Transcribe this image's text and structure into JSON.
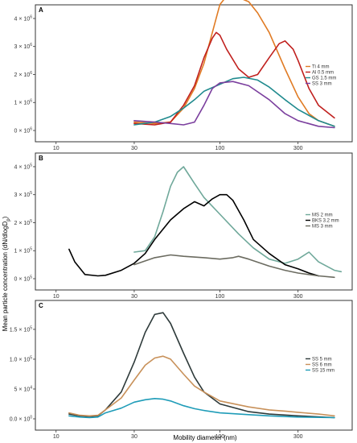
{
  "figure": {
    "xlabel": "Mobility diameter (nm)",
    "ylabel": "Mean particle concentration (dN/dlogD",
    "ylabel_sub": "p",
    "ylabel_end": ")"
  },
  "chart_data": [
    {
      "type": "line",
      "title": "A",
      "xscale": "log",
      "xlim": [
        8,
        600
      ],
      "ylim": [
        0,
        4.2
      ],
      "yexp": "6",
      "xticks": [
        10,
        30,
        100,
        300
      ],
      "xtick_labels": [
        "10",
        "30",
        "100",
        "300"
      ],
      "yticks": [
        0,
        1,
        2,
        3,
        4
      ],
      "ytick_labels": [
        "0 × 10",
        "1 × 10",
        "2 × 10",
        "3 × 10",
        "4 × 10"
      ],
      "legend_position": "right",
      "series": [
        {
          "name": "Ti 4 mm",
          "color": "#E07B24",
          "points": [
            [
              30,
              0.3
            ],
            [
              40,
              0.25
            ],
            [
              50,
              0.3
            ],
            [
              60,
              0.8
            ],
            [
              70,
              1.5
            ],
            [
              80,
              2.4
            ],
            [
              90,
              3.5
            ],
            [
              100,
              4.5
            ],
            [
              110,
              4.8
            ],
            [
              130,
              4.75
            ],
            [
              150,
              4.6
            ],
            [
              170,
              4.2
            ],
            [
              200,
              3.5
            ],
            [
              250,
              2.2
            ],
            [
              300,
              1.2
            ],
            [
              350,
              0.6
            ],
            [
              400,
              0.35
            ],
            [
              500,
              0.15
            ]
          ]
        },
        {
          "name": "Al 0.5 mm",
          "color": "#C0201E",
          "points": [
            [
              30,
              0.25
            ],
            [
              40,
              0.2
            ],
            [
              50,
              0.3
            ],
            [
              60,
              0.9
            ],
            [
              70,
              1.6
            ],
            [
              80,
              2.6
            ],
            [
              90,
              3.3
            ],
            [
              95,
              3.5
            ],
            [
              100,
              3.4
            ],
            [
              110,
              2.9
            ],
            [
              130,
              2.2
            ],
            [
              150,
              1.9
            ],
            [
              170,
              2.0
            ],
            [
              200,
              2.6
            ],
            [
              230,
              3.1
            ],
            [
              250,
              3.2
            ],
            [
              280,
              2.9
            ],
            [
              300,
              2.5
            ],
            [
              350,
              1.5
            ],
            [
              400,
              0.9
            ],
            [
              500,
              0.45
            ]
          ]
        },
        {
          "name": "GS 1.5 mm",
          "color": "#1F8A8E",
          "points": [
            [
              30,
              0.2
            ],
            [
              40,
              0.3
            ],
            [
              50,
              0.5
            ],
            [
              60,
              0.8
            ],
            [
              70,
              1.1
            ],
            [
              80,
              1.4
            ],
            [
              100,
              1.65
            ],
            [
              120,
              1.85
            ],
            [
              140,
              1.9
            ],
            [
              170,
              1.8
            ],
            [
              200,
              1.55
            ],
            [
              250,
              1.1
            ],
            [
              300,
              0.75
            ],
            [
              400,
              0.35
            ],
            [
              500,
              0.15
            ]
          ]
        },
        {
          "name": "SS 3 mm",
          "color": "#7B3F9E",
          "points": [
            [
              30,
              0.35
            ],
            [
              40,
              0.3
            ],
            [
              50,
              0.25
            ],
            [
              60,
              0.2
            ],
            [
              70,
              0.3
            ],
            [
              80,
              0.9
            ],
            [
              90,
              1.5
            ],
            [
              100,
              1.7
            ],
            [
              120,
              1.75
            ],
            [
              150,
              1.6
            ],
            [
              200,
              1.1
            ],
            [
              250,
              0.6
            ],
            [
              300,
              0.35
            ],
            [
              400,
              0.15
            ],
            [
              500,
              0.1
            ]
          ]
        }
      ]
    },
    {
      "type": "line",
      "title": "B",
      "xscale": "log",
      "xlim": [
        8,
        600
      ],
      "ylim": [
        0,
        4.2
      ],
      "yexp": "5",
      "xticks": [
        10,
        30,
        100,
        300
      ],
      "xtick_labels": [
        "10",
        "30",
        "100",
        "300"
      ],
      "yticks": [
        0,
        1,
        2,
        3,
        4
      ],
      "ytick_labels": [
        "0 × 10",
        "1 × 10",
        "2 × 10",
        "3 × 10",
        "4 × 10"
      ],
      "legend_position": "right",
      "series": [
        {
          "name": "MS 2 mm",
          "color": "#6FA89A",
          "points": [
            [
              30,
              0.95
            ],
            [
              35,
              1.0
            ],
            [
              40,
              1.5
            ],
            [
              45,
              2.4
            ],
            [
              50,
              3.3
            ],
            [
              55,
              3.8
            ],
            [
              60,
              4.0
            ],
            [
              70,
              3.4
            ],
            [
              80,
              2.9
            ],
            [
              100,
              2.3
            ],
            [
              130,
              1.6
            ],
            [
              160,
              1.1
            ],
            [
              200,
              0.7
            ],
            [
              250,
              0.55
            ],
            [
              300,
              0.7
            ],
            [
              350,
              0.95
            ],
            [
              400,
              0.6
            ],
            [
              500,
              0.3
            ],
            [
              550,
              0.25
            ]
          ]
        },
        {
          "name": "BKS 3.2 mm",
          "color": "#000000",
          "points": [
            [
              12,
              1.05
            ],
            [
              13,
              0.6
            ],
            [
              15,
              0.15
            ],
            [
              18,
              0.1
            ],
            [
              20,
              0.12
            ],
            [
              25,
              0.3
            ],
            [
              30,
              0.55
            ],
            [
              35,
              0.9
            ],
            [
              40,
              1.4
            ],
            [
              50,
              2.1
            ],
            [
              60,
              2.5
            ],
            [
              70,
              2.75
            ],
            [
              80,
              2.6
            ],
            [
              90,
              2.85
            ],
            [
              100,
              3.0
            ],
            [
              110,
              3.0
            ],
            [
              120,
              2.8
            ],
            [
              140,
              2.1
            ],
            [
              160,
              1.4
            ],
            [
              200,
              0.9
            ],
            [
              250,
              0.5
            ],
            [
              300,
              0.35
            ],
            [
              350,
              0.2
            ],
            [
              400,
              0.1
            ]
          ]
        },
        {
          "name": "MS 3 mm",
          "color": "#6B6B60",
          "points": [
            [
              30,
              0.5
            ],
            [
              40,
              0.75
            ],
            [
              50,
              0.85
            ],
            [
              60,
              0.8
            ],
            [
              80,
              0.75
            ],
            [
              100,
              0.7
            ],
            [
              120,
              0.75
            ],
            [
              130,
              0.8
            ],
            [
              150,
              0.7
            ],
            [
              200,
              0.45
            ],
            [
              250,
              0.3
            ],
            [
              300,
              0.2
            ],
            [
              400,
              0.1
            ],
            [
              500,
              0.05
            ]
          ]
        }
      ]
    },
    {
      "type": "line",
      "title": "C",
      "xscale": "log",
      "xlim": [
        8,
        600
      ],
      "ylim": [
        0,
        1.85
      ],
      "yexp": "5",
      "xticks": [
        10,
        30,
        100,
        300
      ],
      "xtick_labels": [
        "10",
        "30",
        "100",
        "300"
      ],
      "yticks": [
        0,
        0.5,
        1.0,
        1.5
      ],
      "ytick_labels": [
        "0.0 × 10",
        "5 × 10",
        "1.0 × 10",
        "1.5 × 10"
      ],
      "ytick_exps": [
        "0",
        "4",
        "5",
        "5"
      ],
      "legend_position": "right",
      "series": [
        {
          "name": "SS 5 mm",
          "color": "#2E3A3A",
          "points": [
            [
              12,
              0.08
            ],
            [
              14,
              0.05
            ],
            [
              16,
              0.04
            ],
            [
              18,
              0.05
            ],
            [
              20,
              0.15
            ],
            [
              25,
              0.45
            ],
            [
              30,
              0.95
            ],
            [
              35,
              1.45
            ],
            [
              40,
              1.75
            ],
            [
              45,
              1.78
            ],
            [
              50,
              1.6
            ],
            [
              60,
              1.1
            ],
            [
              70,
              0.7
            ],
            [
              80,
              0.45
            ],
            [
              100,
              0.25
            ],
            [
              150,
              0.12
            ],
            [
              200,
              0.08
            ],
            [
              300,
              0.05
            ],
            [
              500,
              0.02
            ]
          ]
        },
        {
          "name": "SS 6 mm",
          "color": "#C8915A",
          "points": [
            [
              12,
              0.1
            ],
            [
              14,
              0.06
            ],
            [
              16,
              0.05
            ],
            [
              18,
              0.06
            ],
            [
              20,
              0.15
            ],
            [
              25,
              0.35
            ],
            [
              30,
              0.65
            ],
            [
              35,
              0.9
            ],
            [
              40,
              1.02
            ],
            [
              45,
              1.05
            ],
            [
              50,
              1.0
            ],
            [
              60,
              0.75
            ],
            [
              70,
              0.55
            ],
            [
              80,
              0.45
            ],
            [
              100,
              0.3
            ],
            [
              150,
              0.2
            ],
            [
              200,
              0.15
            ],
            [
              250,
              0.13
            ],
            [
              300,
              0.11
            ],
            [
              400,
              0.08
            ],
            [
              500,
              0.05
            ]
          ]
        },
        {
          "name": "SS 15 mm",
          "color": "#1F9CB8",
          "points": [
            [
              12,
              0.05
            ],
            [
              14,
              0.03
            ],
            [
              16,
              0.02
            ],
            [
              18,
              0.03
            ],
            [
              20,
              0.1
            ],
            [
              25,
              0.18
            ],
            [
              30,
              0.28
            ],
            [
              35,
              0.32
            ],
            [
              40,
              0.34
            ],
            [
              45,
              0.33
            ],
            [
              50,
              0.3
            ],
            [
              60,
              0.22
            ],
            [
              70,
              0.17
            ],
            [
              80,
              0.14
            ],
            [
              100,
              0.1
            ],
            [
              150,
              0.07
            ],
            [
              200,
              0.05
            ],
            [
              300,
              0.03
            ],
            [
              500,
              0.02
            ]
          ]
        }
      ]
    }
  ]
}
